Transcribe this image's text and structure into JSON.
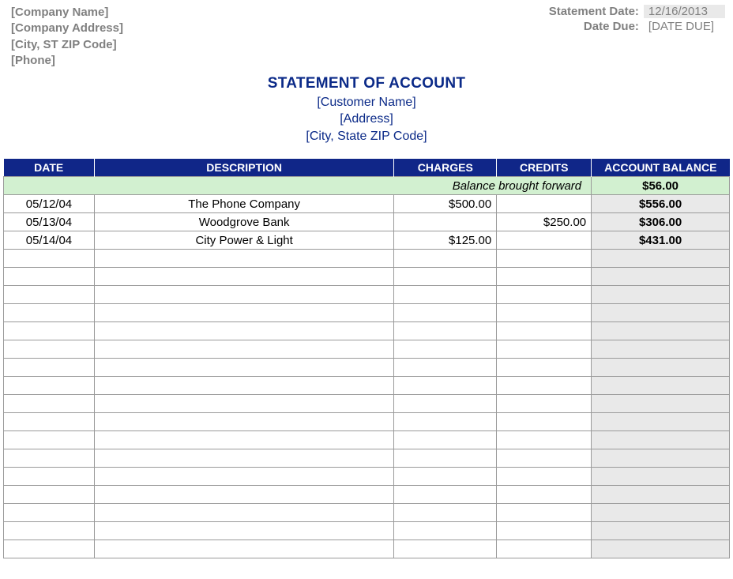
{
  "company": {
    "name": "[Company Name]",
    "address": "[Company Address]",
    "city_st_zip": "[City, ST  ZIP Code]",
    "phone": "[Phone]"
  },
  "meta": {
    "statement_date_label": "Statement Date:",
    "statement_date_value": "12/16/2013",
    "date_due_label": "Date Due:",
    "date_due_value": "[DATE DUE]"
  },
  "title": {
    "heading": "STATEMENT OF ACCOUNT",
    "customer_name": "[Customer Name]",
    "address": "[Address]",
    "city_st_zip": "[City, State  ZIP Code]"
  },
  "table": {
    "headers": {
      "date": "DATE",
      "description": "DESCRIPTION",
      "charges": "CHARGES",
      "credits": "CREDITS",
      "balance": "ACCOUNT BALANCE"
    },
    "brought_forward_label": "Balance brought forward",
    "brought_forward_balance": "$56.00",
    "rows": [
      {
        "date": "05/12/04",
        "description": "The Phone Company",
        "charges": "$500.00",
        "credits": "",
        "balance": "$556.00"
      },
      {
        "date": "05/13/04",
        "description": "Woodgrove Bank",
        "charges": "",
        "credits": "$250.00",
        "balance": "$306.00"
      },
      {
        "date": "05/14/04",
        "description": "City Power & Light",
        "charges": "$125.00",
        "credits": "",
        "balance": "$431.00"
      }
    ],
    "empty_row_count": 17,
    "colors": {
      "header_bg": "#102688",
      "header_fg": "#ffffff",
      "brought_bg": "#d2f0d0",
      "balance_bg": "#e9e9e9",
      "grid": "#9a9a9a",
      "title_color": "#0b2a88",
      "muted_text": "#808080"
    }
  }
}
